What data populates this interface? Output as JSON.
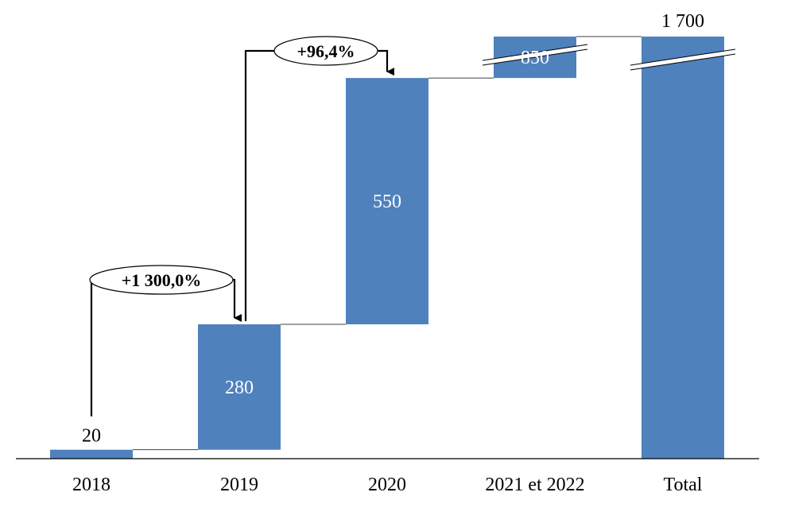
{
  "chart_data": {
    "type": "bar",
    "subtype": "waterfall",
    "categories": [
      "2018",
      "2019",
      "2020",
      "2021 et 2022",
      "Total"
    ],
    "values": [
      20,
      280,
      550,
      850,
      1700
    ],
    "value_labels": [
      "20",
      "280",
      "550",
      "850",
      "1 700"
    ],
    "ylim": [
      0,
      1700
    ],
    "axis_break": true,
    "growth_annotations": [
      {
        "from": "2018",
        "to": "2019",
        "label": "+1 300,0%"
      },
      {
        "from": "2019",
        "to": "2020",
        "label": "+96,4%"
      }
    ],
    "bar_color": "#4f81bd",
    "grid": false,
    "legend": "none"
  }
}
